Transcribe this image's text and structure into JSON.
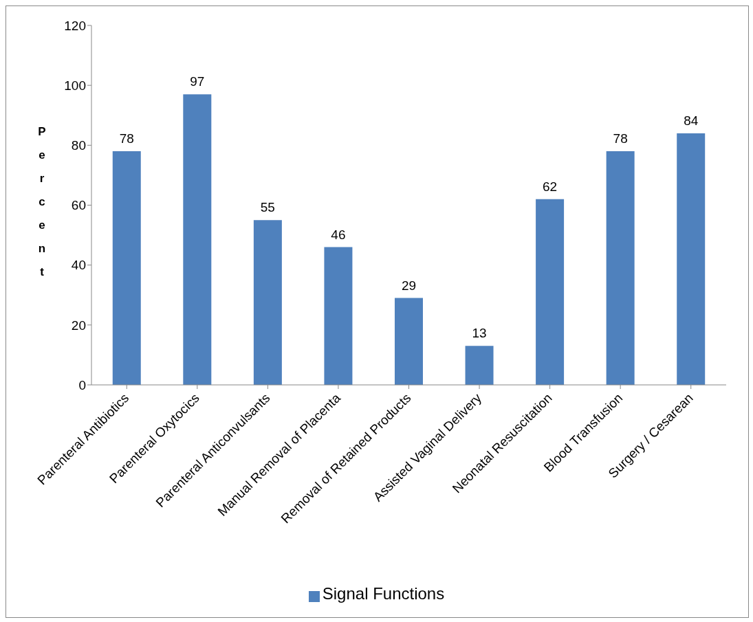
{
  "chart_data": {
    "type": "bar",
    "ylabel": "Percent",
    "categories": [
      "Parenteral Antibiotics",
      "Parenteral Oxytocics",
      "Parenteral Anticonvulsants",
      "Manual Removal of Placenta",
      "Removal of Retained Products",
      "Assisted Vaginal Delivery",
      "Neonatal Resuscitation",
      "Blood Transfusion",
      "Surgery / Cesarean"
    ],
    "series": [
      {
        "name": "Signal Functions",
        "color": "#4f81bd",
        "values": [
          78,
          97,
          55,
          46,
          29,
          13,
          62,
          78,
          84
        ]
      }
    ],
    "ylim": [
      0,
      120
    ],
    "yticks": [
      0,
      20,
      40,
      60,
      80,
      100,
      120
    ],
    "data_labels": true,
    "grid": false,
    "legend": "bottom"
  }
}
